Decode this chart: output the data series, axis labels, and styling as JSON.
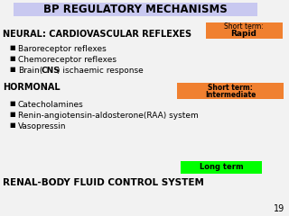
{
  "title": "BP REGULATORY MECHANISMS",
  "title_bg": "#c8c8f0",
  "background": "#f2f2f2",
  "section1_header": "NEURAL: CARDIOVASCULAR REFLEXES",
  "section1_bullet1": "Baroreceptor reflexes",
  "section1_bullet2": "Chemoreceptor reflexes",
  "section1_bullet3a": "Brain(",
  "section1_bullet3b": "CNS",
  "section1_bullet3c": ") ischaemic response",
  "box1_line1": "Short term:",
  "box1_line2": "Rapid",
  "box1_color": "#f08030",
  "section2_header": "HORMONAL",
  "section2_bullet1": "Catecholamines",
  "section2_bullet2": "Renin-angiotensin-aldosterone(RAA) system",
  "section2_bullet3": "Vasopressin",
  "box2_line1": "Short term:",
  "box2_line2": "Intermediate",
  "box2_color": "#f08030",
  "section3_header": "RENAL-BODY FLUID CONTROL SYSTEM",
  "box3_text": "Long term",
  "box3_color": "#00ff00",
  "page_number": "19",
  "bullet_char": "■"
}
